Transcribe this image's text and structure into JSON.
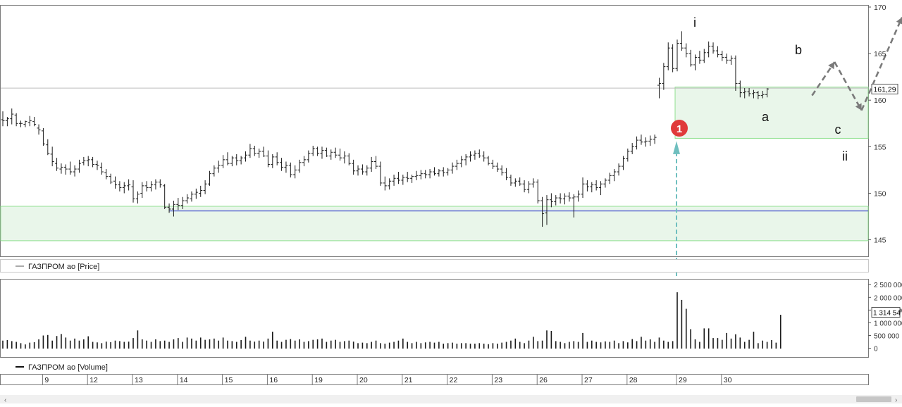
{
  "colors": {
    "panel_border": "#7a7a7a",
    "bar": "#1a1a1a",
    "zone_fill": "#e9f6ea",
    "zone_edge": "#8fe08f",
    "support_line": "#2a36c8",
    "current_line": "#bdbdbd",
    "arrow": "#7a7a7a",
    "signal_arrow": "#6fbfbf",
    "marker": "#e03a3a"
  },
  "chart_data": [
    {
      "type": "ohlc",
      "legend": "ГАЗПРОМ ао [Price]",
      "ylim": [
        143,
        170
      ],
      "y_ticks": [
        145,
        150,
        155,
        160,
        165,
        170
      ],
      "current_value_label": "161,29",
      "current_value": 161.29,
      "support_line": 148.1,
      "zones": [
        {
          "from": 144.9,
          "to": 148.6,
          "x_from": 0,
          "x_to": 181
        },
        {
          "from": 155.9,
          "to": 161.4,
          "x_from": 150,
          "x_to": 181
        }
      ],
      "bars": [
        [
          157.9,
          158.8,
          157.2,
          157.8
        ],
        [
          157.8,
          158.2,
          157.2,
          158.0
        ],
        [
          158.0,
          159.1,
          157.4,
          158.5
        ],
        [
          158.4,
          158.6,
          157.2,
          157.5
        ],
        [
          157.5,
          157.8,
          157.1,
          157.5
        ],
        [
          157.4,
          157.8,
          157.1,
          157.7
        ],
        [
          157.6,
          158.3,
          157.2,
          157.8
        ],
        [
          157.7,
          158.2,
          157.2,
          157.4
        ],
        [
          157.0,
          157.4,
          156.3,
          156.8
        ],
        [
          156.7,
          157.0,
          155.1,
          155.3
        ],
        [
          155.2,
          155.8,
          154.1,
          154.3
        ],
        [
          154.2,
          155.0,
          152.9,
          153.4
        ],
        [
          153.2,
          153.8,
          152.4,
          152.7
        ],
        [
          152.6,
          153.2,
          152.1,
          152.8
        ],
        [
          152.8,
          153.1,
          152.0,
          152.6
        ],
        [
          152.6,
          153.4,
          152.0,
          152.3
        ],
        [
          152.3,
          153.0,
          151.8,
          152.6
        ],
        [
          152.6,
          153.6,
          152.2,
          153.2
        ],
        [
          153.3,
          153.9,
          153.0,
          153.5
        ],
        [
          153.5,
          154.0,
          152.9,
          153.6
        ],
        [
          153.6,
          153.9,
          152.8,
          153.1
        ],
        [
          153.1,
          153.5,
          152.5,
          153.0
        ],
        [
          152.8,
          153.3,
          152.0,
          152.3
        ],
        [
          152.2,
          152.6,
          151.5,
          151.8
        ],
        [
          151.8,
          152.1,
          151.0,
          151.2
        ],
        [
          151.3,
          151.8,
          150.5,
          150.9
        ],
        [
          150.9,
          151.3,
          150.2,
          150.6
        ],
        [
          150.6,
          151.2,
          150.0,
          150.8
        ],
        [
          150.8,
          151.5,
          150.3,
          150.9
        ],
        [
          150.7,
          151.4,
          149.0,
          149.4
        ],
        [
          149.4,
          150.2,
          148.9,
          149.9
        ],
        [
          150.0,
          151.2,
          149.5,
          150.8
        ],
        [
          150.8,
          151.3,
          150.2,
          150.6
        ],
        [
          150.6,
          151.3,
          150.2,
          150.9
        ],
        [
          150.9,
          151.5,
          150.4,
          151.2
        ],
        [
          151.2,
          151.5,
          150.6,
          150.9
        ],
        [
          150.8,
          151.0,
          148.3,
          148.5
        ],
        [
          148.5,
          148.9,
          147.9,
          148.3
        ],
        [
          148.3,
          149.2,
          147.5,
          148.8
        ],
        [
          148.8,
          149.5,
          148.2,
          148.7
        ],
        [
          148.7,
          149.6,
          148.3,
          149.2
        ],
        [
          149.2,
          149.9,
          148.9,
          149.5
        ],
        [
          149.4,
          150.2,
          149.1,
          149.9
        ],
        [
          149.9,
          150.5,
          149.4,
          150.1
        ],
        [
          150.0,
          150.8,
          149.6,
          150.3
        ],
        [
          150.3,
          151.4,
          149.9,
          151.0
        ],
        [
          151.0,
          152.4,
          150.8,
          152.1
        ],
        [
          152.1,
          153.0,
          151.8,
          152.7
        ],
        [
          152.7,
          153.5,
          152.2,
          153.0
        ],
        [
          153.0,
          154.1,
          152.7,
          153.6
        ],
        [
          153.6,
          154.4,
          153.0,
          153.2
        ],
        [
          153.2,
          154.0,
          152.9,
          153.8
        ],
        [
          153.8,
          154.2,
          153.0,
          153.5
        ],
        [
          153.5,
          154.0,
          153.1,
          153.8
        ],
        [
          153.8,
          154.5,
          153.4,
          154.1
        ],
        [
          154.1,
          155.3,
          153.8,
          154.8
        ],
        [
          154.8,
          155.1,
          154.0,
          154.3
        ],
        [
          154.3,
          154.8,
          153.8,
          154.5
        ],
        [
          154.5,
          155.0,
          153.9,
          154.0
        ],
        [
          154.0,
          154.6,
          152.8,
          153.1
        ],
        [
          153.1,
          154.2,
          152.7,
          153.9
        ],
        [
          153.9,
          154.4,
          153.0,
          153.3
        ],
        [
          153.3,
          153.8,
          152.4,
          152.8
        ],
        [
          152.8,
          153.4,
          152.2,
          153.0
        ],
        [
          153.0,
          153.3,
          151.7,
          152.0
        ],
        [
          152.0,
          153.0,
          151.6,
          152.5
        ],
        [
          152.5,
          153.6,
          152.2,
          153.3
        ],
        [
          153.3,
          154.0,
          152.9,
          153.6
        ],
        [
          153.6,
          154.6,
          153.3,
          154.3
        ],
        [
          154.3,
          155.1,
          154.0,
          154.8
        ],
        [
          154.8,
          155.0,
          154.0,
          154.3
        ],
        [
          154.3,
          155.0,
          153.7,
          154.6
        ],
        [
          154.6,
          154.9,
          153.9,
          154.0
        ],
        [
          154.0,
          154.7,
          153.6,
          154.4
        ],
        [
          154.4,
          154.9,
          153.8,
          154.1
        ],
        [
          154.1,
          154.8,
          153.5,
          153.8
        ],
        [
          153.8,
          154.5,
          153.2,
          154.0
        ],
        [
          154.0,
          154.3,
          153.0,
          153.2
        ],
        [
          153.2,
          153.6,
          152.0,
          152.4
        ],
        [
          152.4,
          153.0,
          151.9,
          152.6
        ],
        [
          152.6,
          153.1,
          152.0,
          152.3
        ],
        [
          152.3,
          153.0,
          151.9,
          152.7
        ],
        [
          152.7,
          153.9,
          152.3,
          153.4
        ],
        [
          153.4,
          154.0,
          152.6,
          152.9
        ],
        [
          152.9,
          153.4,
          150.8,
          151.1
        ],
        [
          151.1,
          151.8,
          150.3,
          150.8
        ],
        [
          150.8,
          151.6,
          150.4,
          151.3
        ],
        [
          151.3,
          152.0,
          150.8,
          151.6
        ],
        [
          151.6,
          152.3,
          151.0,
          151.4
        ],
        [
          151.4,
          152.0,
          150.9,
          151.7
        ],
        [
          151.7,
          152.3,
          151.2,
          151.6
        ],
        [
          151.6,
          152.0,
          151.1,
          151.8
        ],
        [
          151.8,
          152.4,
          151.4,
          151.9
        ],
        [
          151.9,
          152.5,
          151.5,
          152.1
        ],
        [
          152.1,
          152.5,
          151.6,
          152.0
        ],
        [
          152.0,
          152.6,
          151.6,
          152.3
        ],
        [
          152.3,
          152.8,
          151.9,
          152.1
        ],
        [
          152.1,
          152.6,
          151.8,
          152.4
        ],
        [
          152.4,
          152.8,
          151.8,
          152.2
        ],
        [
          152.2,
          152.7,
          151.9,
          152.5
        ],
        [
          152.5,
          153.3,
          152.1,
          152.9
        ],
        [
          152.9,
          153.6,
          152.5,
          153.2
        ],
        [
          153.2,
          154.0,
          152.8,
          153.6
        ],
        [
          153.6,
          154.2,
          153.0,
          153.9
        ],
        [
          153.9,
          154.5,
          153.4,
          154.1
        ],
        [
          154.1,
          154.6,
          153.6,
          154.3
        ],
        [
          154.3,
          154.7,
          153.8,
          154.0
        ],
        [
          154.0,
          154.5,
          153.4,
          153.8
        ],
        [
          153.8,
          154.0,
          153.0,
          153.2
        ],
        [
          153.2,
          153.6,
          152.6,
          152.9
        ],
        [
          152.9,
          153.3,
          152.3,
          152.6
        ],
        [
          152.6,
          153.0,
          151.9,
          152.2
        ],
        [
          152.2,
          152.7,
          151.4,
          151.7
        ],
        [
          151.7,
          152.0,
          150.8,
          151.1
        ],
        [
          151.1,
          151.6,
          150.7,
          151.3
        ],
        [
          151.3,
          151.7,
          150.8,
          151.0
        ],
        [
          151.0,
          151.4,
          150.1,
          150.4
        ],
        [
          150.4,
          151.3,
          150.0,
          151.0
        ],
        [
          151.0,
          151.6,
          150.6,
          151.2
        ],
        [
          151.2,
          151.5,
          148.9,
          149.2
        ],
        [
          149.2,
          149.6,
          146.4,
          147.8
        ],
        [
          147.9,
          149.8,
          146.6,
          149.3
        ],
        [
          149.3,
          150.0,
          148.5,
          149.1
        ],
        [
          149.1,
          149.8,
          148.7,
          149.5
        ],
        [
          149.5,
          150.0,
          148.9,
          149.4
        ],
        [
          149.4,
          150.0,
          148.8,
          149.7
        ],
        [
          149.7,
          150.1,
          149.1,
          149.5
        ],
        [
          149.5,
          149.9,
          147.4,
          149.6
        ],
        [
          149.6,
          150.3,
          149.1,
          149.9
        ],
        [
          149.9,
          151.7,
          149.5,
          151.0
        ],
        [
          151.0,
          151.4,
          150.2,
          150.7
        ],
        [
          150.7,
          151.2,
          150.1,
          150.9
        ],
        [
          150.9,
          151.4,
          150.3,
          150.6
        ],
        [
          150.6,
          151.3,
          149.8,
          151.0
        ],
        [
          151.0,
          151.6,
          150.6,
          151.4
        ],
        [
          151.4,
          152.2,
          151.0,
          151.9
        ],
        [
          151.9,
          152.6,
          151.3,
          152.3
        ],
        [
          152.3,
          153.2,
          151.9,
          152.9
        ],
        [
          152.9,
          154.0,
          152.5,
          153.7
        ],
        [
          153.7,
          154.8,
          153.4,
          154.5
        ],
        [
          154.5,
          155.4,
          154.2,
          155.0
        ],
        [
          155.0,
          156.1,
          154.7,
          155.7
        ],
        [
          155.7,
          156.3,
          155.2,
          155.5
        ],
        [
          155.5,
          156.0,
          155.0,
          155.6
        ],
        [
          155.6,
          156.2,
          155.1,
          155.8
        ],
        [
          155.8,
          156.3,
          155.3,
          156.0
        ],
        [
          161.6,
          162.4,
          160.2,
          161.8
        ],
        [
          161.8,
          164.0,
          161.1,
          163.6
        ],
        [
          163.6,
          166.2,
          163.2,
          165.6
        ],
        [
          165.6,
          166.0,
          163.0,
          163.4
        ],
        [
          163.4,
          166.5,
          163.1,
          166.1
        ],
        [
          166.1,
          167.4,
          165.3,
          165.6
        ],
        [
          165.6,
          166.1,
          164.6,
          165.0
        ],
        [
          165.0,
          165.4,
          163.6,
          163.8
        ],
        [
          163.8,
          164.9,
          163.2,
          164.6
        ],
        [
          164.6,
          165.3,
          163.9,
          164.3
        ],
        [
          164.3,
          165.5,
          164.0,
          165.1
        ],
        [
          165.1,
          166.3,
          164.6,
          165.8
        ],
        [
          165.8,
          166.2,
          165.0,
          165.3
        ],
        [
          165.3,
          165.8,
          164.6,
          164.9
        ],
        [
          164.9,
          165.3,
          164.2,
          164.6
        ],
        [
          164.6,
          165.0,
          163.9,
          164.3
        ],
        [
          164.3,
          164.8,
          163.8,
          164.5
        ],
        [
          164.5,
          164.8,
          161.0,
          161.8
        ],
        [
          161.8,
          162.1,
          160.3,
          160.8
        ],
        [
          160.8,
          161.3,
          160.2,
          160.9
        ],
        [
          160.9,
          161.3,
          160.4,
          160.7
        ],
        [
          160.7,
          161.1,
          160.2,
          160.8
        ],
        [
          160.8,
          161.0,
          160.1,
          160.5
        ],
        [
          160.5,
          161.0,
          160.2,
          160.6
        ],
        [
          160.6,
          161.3,
          160.3,
          161.2
        ]
      ],
      "annotations": {
        "wave_i": "i",
        "wave_a": "a",
        "wave_b": "b",
        "wave_c": "c",
        "wave_ii": "ii",
        "marker": "1"
      },
      "projection_path": [
        [
          180,
          160.5
        ],
        [
          185,
          164.1
        ],
        [
          191,
          158.9
        ],
        [
          200,
          168.9
        ]
      ]
    },
    {
      "type": "bar",
      "legend": "ГАЗПРОМ ао [Volume]",
      "ylim": [
        -400000,
        2700000
      ],
      "y_ticks": [
        0,
        500000,
        1000000,
        1500000,
        2000000,
        2500000
      ],
      "y_tick_labels": [
        "0",
        "500 000",
        "1 000 000",
        "1 500 000",
        "2 000 000",
        "2 500 000"
      ],
      "current_value_label": "1 314 54",
      "current_value": 1314540,
      "values": [
        300000,
        320000,
        280000,
        250000,
        200000,
        150000,
        220000,
        240000,
        350000,
        500000,
        520000,
        300000,
        480000,
        560000,
        420000,
        300000,
        380000,
        300000,
        350000,
        470000,
        250000,
        230000,
        200000,
        260000,
        240000,
        300000,
        280000,
        250000,
        260000,
        400000,
        700000,
        350000,
        300000,
        250000,
        350000,
        280000,
        300000,
        250000,
        350000,
        400000,
        250000,
        420000,
        380000,
        300000,
        420000,
        330000,
        350000,
        380000,
        300000,
        420000,
        300000,
        280000,
        250000,
        320000,
        450000,
        300000,
        260000,
        300000,
        260000,
        380000,
        650000,
        300000,
        250000,
        330000,
        360000,
        300000,
        350000,
        250000,
        280000,
        330000,
        350000,
        380000,
        250000,
        300000,
        330000,
        250000,
        280000,
        300000,
        260000,
        200000,
        220000,
        200000,
        250000,
        300000,
        200000,
        180000,
        220000,
        250000,
        300000,
        380000,
        250000,
        200000,
        250000,
        200000,
        230000,
        250000,
        220000,
        250000,
        180000,
        200000,
        220000,
        180000,
        200000,
        200000,
        180000,
        180000,
        200000,
        180000,
        160000,
        200000,
        180000,
        220000,
        250000,
        300000,
        380000,
        250000,
        200000,
        300000,
        450000,
        280000,
        300000,
        700000,
        680000,
        280000,
        250000,
        200000,
        250000,
        280000,
        250000,
        600000,
        250000,
        300000,
        250000,
        230000,
        270000,
        250000,
        300000,
        200000,
        280000,
        230000,
        360000,
        280000,
        450000,
        300000,
        350000,
        250000,
        420000,
        300000,
        250000,
        280000,
        2200000,
        1900000,
        1550000,
        750000,
        350000,
        250000,
        780000,
        780000,
        400000,
        400000,
        330000,
        600000,
        380000,
        550000,
        420000,
        250000,
        330000,
        650000,
        200000,
        300000,
        250000,
        320000,
        220000,
        1314540
      ]
    }
  ],
  "x_axis": {
    "labels": [
      "9",
      "12",
      "13",
      "14",
      "15",
      "16",
      "19",
      "20",
      "21",
      "22",
      "23",
      "26",
      "27",
      "28",
      "29",
      "30"
    ]
  }
}
